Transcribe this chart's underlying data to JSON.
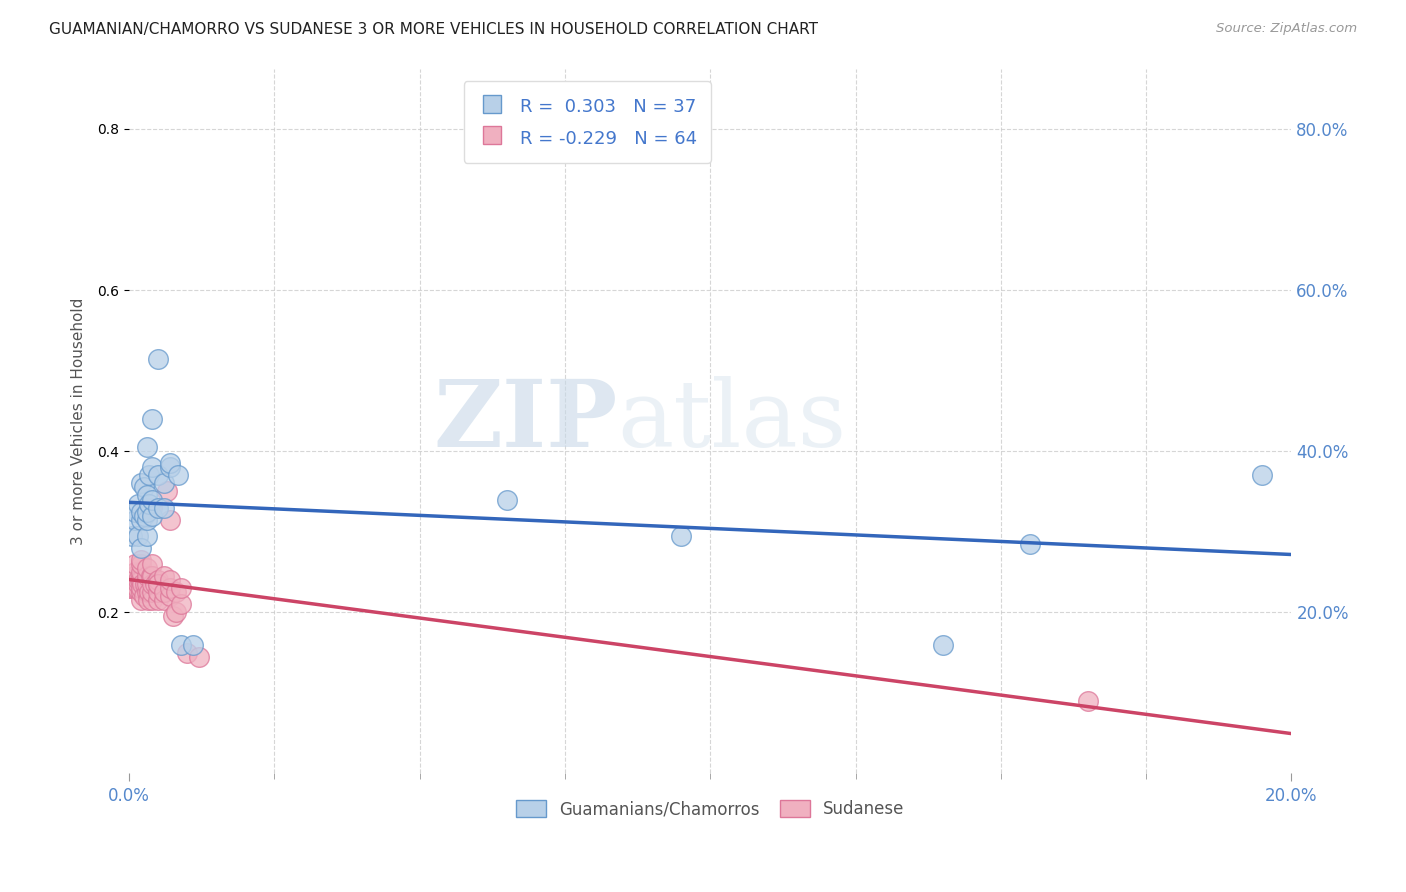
{
  "title": "GUAMANIAN/CHAMORRO VS SUDANESE 3 OR MORE VEHICLES IN HOUSEHOLD CORRELATION CHART",
  "source": "Source: ZipAtlas.com",
  "blue_label": "Guamanians/Chamorros",
  "pink_label": "Sudanese",
  "blue_R": 0.303,
  "blue_N": 37,
  "pink_R": -0.229,
  "pink_N": 64,
  "blue_fill": "#b8d0e8",
  "blue_edge": "#6699cc",
  "pink_fill": "#f0b0c0",
  "pink_edge": "#dd7799",
  "blue_line_color": "#3366bb",
  "pink_line_color": "#cc4466",
  "legend_text_color": "#4477cc",
  "ylabel": "3 or more Vehicles in Household",
  "ylabel_right_ticks": [
    "20.0%",
    "40.0%",
    "60.0%",
    "80.0%"
  ],
  "ylabel_right_vals": [
    0.2,
    0.4,
    0.6,
    0.8
  ],
  "xmin": 0.0,
  "xmax": 0.2,
  "ymin": 0.0,
  "ymax": 0.875,
  "blue_x": [
    0.0005,
    0.001,
    0.001,
    0.0015,
    0.0015,
    0.002,
    0.002,
    0.002,
    0.002,
    0.0025,
    0.0025,
    0.003,
    0.003,
    0.003,
    0.003,
    0.003,
    0.0035,
    0.0035,
    0.004,
    0.004,
    0.004,
    0.004,
    0.005,
    0.005,
    0.005,
    0.006,
    0.006,
    0.007,
    0.007,
    0.0085,
    0.009,
    0.011,
    0.065,
    0.095,
    0.14,
    0.155,
    0.195
  ],
  "blue_y": [
    0.295,
    0.315,
    0.325,
    0.295,
    0.335,
    0.28,
    0.315,
    0.325,
    0.36,
    0.32,
    0.355,
    0.295,
    0.315,
    0.325,
    0.345,
    0.405,
    0.335,
    0.37,
    0.32,
    0.34,
    0.38,
    0.44,
    0.33,
    0.37,
    0.515,
    0.33,
    0.36,
    0.38,
    0.385,
    0.37,
    0.16,
    0.16,
    0.34,
    0.295,
    0.16,
    0.285,
    0.37
  ],
  "pink_x": [
    0.0002,
    0.0003,
    0.0004,
    0.0005,
    0.0006,
    0.0007,
    0.0008,
    0.0009,
    0.001,
    0.001,
    0.001,
    0.001,
    0.001,
    0.001,
    0.0013,
    0.0015,
    0.0016,
    0.0018,
    0.002,
    0.002,
    0.002,
    0.002,
    0.002,
    0.002,
    0.002,
    0.0022,
    0.0025,
    0.0028,
    0.003,
    0.003,
    0.003,
    0.003,
    0.003,
    0.0033,
    0.0035,
    0.0038,
    0.004,
    0.004,
    0.004,
    0.004,
    0.004,
    0.004,
    0.0045,
    0.005,
    0.005,
    0.005,
    0.005,
    0.005,
    0.006,
    0.006,
    0.006,
    0.0065,
    0.007,
    0.007,
    0.007,
    0.007,
    0.0075,
    0.008,
    0.008,
    0.009,
    0.009,
    0.01,
    0.012,
    0.165
  ],
  "pink_y": [
    0.23,
    0.235,
    0.235,
    0.23,
    0.235,
    0.24,
    0.24,
    0.245,
    0.23,
    0.235,
    0.24,
    0.245,
    0.25,
    0.26,
    0.23,
    0.235,
    0.24,
    0.24,
    0.215,
    0.225,
    0.23,
    0.24,
    0.25,
    0.26,
    0.265,
    0.235,
    0.22,
    0.235,
    0.225,
    0.235,
    0.245,
    0.255,
    0.33,
    0.215,
    0.225,
    0.245,
    0.215,
    0.225,
    0.235,
    0.245,
    0.26,
    0.33,
    0.235,
    0.215,
    0.225,
    0.235,
    0.24,
    0.235,
    0.215,
    0.225,
    0.245,
    0.35,
    0.22,
    0.23,
    0.24,
    0.315,
    0.195,
    0.2,
    0.225,
    0.21,
    0.23,
    0.15,
    0.145,
    0.09
  ],
  "watermark_zip": "ZIP",
  "watermark_atlas": "atlas"
}
